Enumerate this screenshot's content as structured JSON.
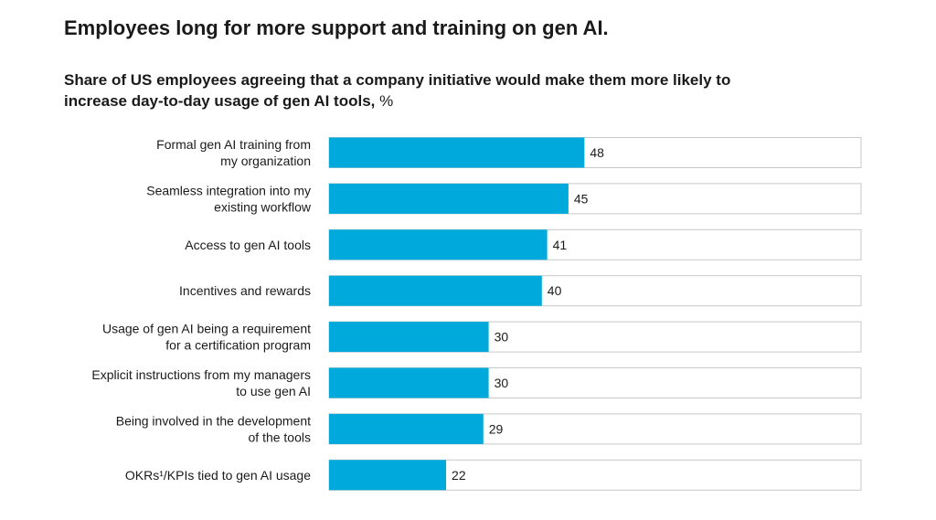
{
  "chart_data": {
    "type": "bar",
    "orientation": "horizontal",
    "title": "Employees long for more support and training on gen AI.",
    "subtitle": "Share of US employees agreeing that a company initiative would make them more likely to\nincrease day-to-day usage of gen AI tools,",
    "unit": "%",
    "categories": [
      "Formal gen AI training from\nmy organization",
      "Seamless integration into my\nexisting workflow",
      "Access to gen AI tools",
      "Incentives and rewards",
      "Usage of gen AI being a requirement\nfor a certification program",
      "Explicit instructions from my managers\nto use gen AI",
      "Being involved in the development\nof the tools",
      "OKRs¹/KPIs tied to gen AI usage"
    ],
    "values": [
      48,
      45,
      41,
      40,
      30,
      30,
      29,
      22
    ],
    "color": "#00a9db",
    "xlim": [
      0,
      100
    ]
  }
}
